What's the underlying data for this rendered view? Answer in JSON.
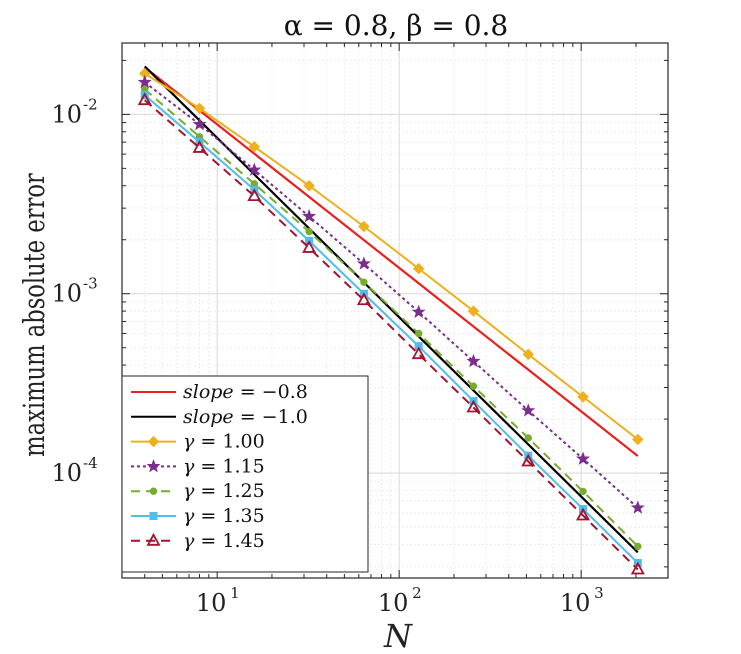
{
  "chart_data": {
    "type": "line",
    "title": "α = 0.8, β = 0.8",
    "xlabel": "N",
    "ylabel": "maximum absolute error",
    "xscale": "log",
    "yscale": "log",
    "xlim": [
      3,
      3000
    ],
    "ylim": [
      2.6e-05,
      0.025
    ],
    "grid": true,
    "legend_position": "bottom-left",
    "x_ticks": [
      {
        "base": "10",
        "exp": "1",
        "value": 10
      },
      {
        "base": "10",
        "exp": "2",
        "value": 100
      },
      {
        "base": "10",
        "exp": "3",
        "value": 1000
      }
    ],
    "y_ticks": [
      {
        "base": "10",
        "exp": "-4",
        "value": 0.0001
      },
      {
        "base": "10",
        "exp": "-3",
        "value": 0.001
      },
      {
        "base": "10",
        "exp": "-2",
        "value": 0.01
      }
    ],
    "reference_lines": [
      {
        "name": "slope = −0.8",
        "label_var": "slope",
        "label_rest": " = −0.8",
        "color": "#e8201e",
        "slope": -0.8,
        "x": [
          4,
          2048
        ],
        "y0": 0.0183
      },
      {
        "name": "slope = −1.0",
        "label_var": "slope",
        "label_rest": " = −1.0",
        "color": "#000000",
        "slope": -1.0,
        "x": [
          4,
          2048
        ],
        "y0": 0.0185
      }
    ],
    "series": [
      {
        "name": "γ = 1.00",
        "label_var": "γ",
        "label_rest": " = 1.00",
        "color": "#eeb01c",
        "dash": "",
        "marker": "diamond",
        "x": [
          4,
          8,
          16,
          32,
          64,
          128,
          256,
          512,
          1024,
          2048
        ],
        "y": [
          0.0169,
          0.0108,
          0.0066,
          0.004,
          0.00237,
          0.00138,
          0.0008,
          0.000459,
          0.000266,
          0.000154
        ]
      },
      {
        "name": "γ = 1.15",
        "label_var": "γ",
        "label_rest": " = 1.15",
        "color": "#7b2d8e",
        "dash": "3,3",
        "marker": "star",
        "x": [
          4,
          8,
          16,
          32,
          64,
          128,
          256,
          512,
          1024,
          2048
        ],
        "y": [
          0.0151,
          0.0088,
          0.0049,
          0.0027,
          0.00147,
          0.00079,
          0.00042,
          0.000223,
          0.00012,
          6.4e-05
        ]
      },
      {
        "name": "γ = 1.25",
        "label_var": "γ",
        "label_rest": " = 1.25",
        "color": "#77ac30",
        "dash": "9,6",
        "marker": "dot",
        "x": [
          4,
          8,
          16,
          32,
          64,
          128,
          256,
          512,
          1024,
          2048
        ],
        "y": [
          0.0138,
          0.0075,
          0.0041,
          0.00222,
          0.00116,
          0.0006,
          0.000305,
          0.000157,
          7.9e-05,
          3.9e-05
        ]
      },
      {
        "name": "γ = 1.35",
        "label_var": "γ",
        "label_rest": " = 1.35",
        "color": "#4dbeee",
        "dash": "",
        "marker": "square",
        "x": [
          4,
          8,
          16,
          32,
          64,
          128,
          256,
          512,
          1024,
          2048
        ],
        "y": [
          0.0128,
          0.007,
          0.0038,
          0.00197,
          0.001,
          0.00051,
          0.000252,
          0.000125,
          6.3e-05,
          3.15e-05
        ]
      },
      {
        "name": "γ = 1.45",
        "label_var": "γ",
        "label_rest": " = 1.45",
        "color": "#a2142f",
        "dash": "9,6",
        "marker": "triangle",
        "x": [
          4,
          8,
          16,
          32,
          64,
          128,
          256,
          512,
          1024,
          2048
        ],
        "y": [
          0.012,
          0.0065,
          0.0035,
          0.0018,
          0.00092,
          0.00046,
          0.000232,
          0.000116,
          5.8e-05,
          2.9e-05
        ]
      }
    ]
  }
}
